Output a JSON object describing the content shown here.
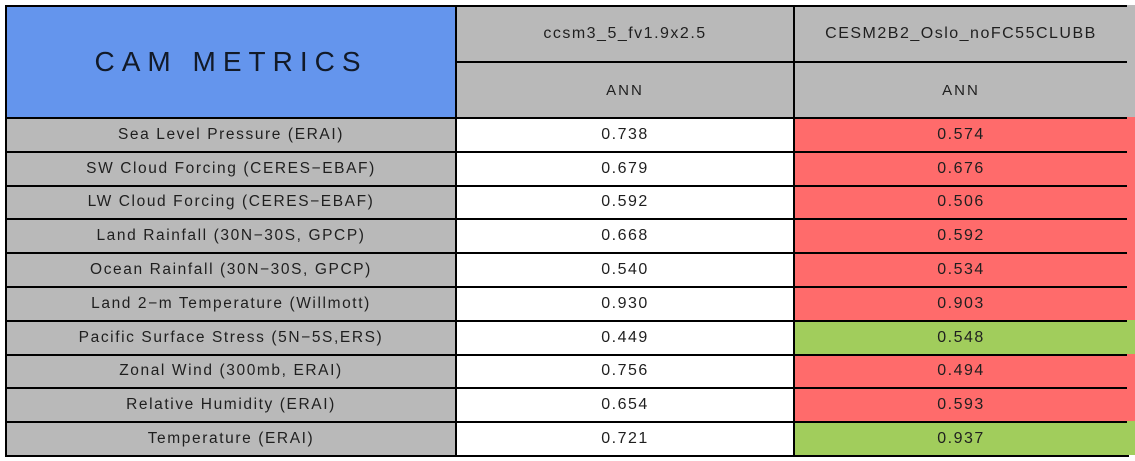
{
  "chart_data": {
    "type": "table",
    "title": "CAM METRICS",
    "column_groups": [
      {
        "model": "ccsm3_5_fv1.9x2.5",
        "season": "ANN"
      },
      {
        "model": "CESM2B2_Oslo_noFC55CLUBB",
        "season": "ANN"
      }
    ],
    "metrics": [
      "Sea Level Pressure (ERAI)",
      "SW Cloud Forcing (CERES−EBAF)",
      "LW Cloud Forcing (CERES−EBAF)",
      "Land Rainfall (30N−30S, GPCP)",
      "Ocean Rainfall (30N−30S, GPCP)",
      "Land 2−m Temperature (Willmott)",
      "Pacific Surface Stress (5N−5S,ERS)",
      "Zonal Wind (300mb, ERAI)",
      "Relative Humidity (ERAI)",
      "Temperature (ERAI)"
    ],
    "series": [
      {
        "name": "ccsm3_5_fv1.9x2.5 ANN",
        "values": [
          0.738,
          0.679,
          0.592,
          0.668,
          0.54,
          0.93,
          0.449,
          0.756,
          0.654,
          0.721
        ]
      },
      {
        "name": "CESM2B2_Oslo_noFC55CLUBB ANN",
        "values": [
          0.574,
          0.676,
          0.506,
          0.592,
          0.534,
          0.903,
          0.548,
          0.494,
          0.593,
          0.937
        ]
      }
    ],
    "cell_highlight_second_series": [
      "worse",
      "worse",
      "worse",
      "worse",
      "worse",
      "worse",
      "better",
      "worse",
      "worse",
      "better"
    ]
  },
  "table": {
    "title": "CAM METRICS",
    "col1": {
      "model": "ccsm3_5_fv1.9x2.5",
      "season": "ANN"
    },
    "col2": {
      "model": "CESM2B2_Oslo_noFC55CLUBB",
      "season": "ANN"
    },
    "rows": [
      {
        "metric": "Sea Level Pressure (ERAI)",
        "v1": "0.738",
        "v2": "0.574",
        "status": "worse"
      },
      {
        "metric": "SW Cloud Forcing (CERES−EBAF)",
        "v1": "0.679",
        "v2": "0.676",
        "status": "worse"
      },
      {
        "metric": "LW Cloud Forcing (CERES−EBAF)",
        "v1": "0.592",
        "v2": "0.506",
        "status": "worse"
      },
      {
        "metric": "Land Rainfall (30N−30S, GPCP)",
        "v1": "0.668",
        "v2": "0.592",
        "status": "worse"
      },
      {
        "metric": "Ocean Rainfall (30N−30S, GPCP)",
        "v1": "0.540",
        "v2": "0.534",
        "status": "worse"
      },
      {
        "metric": "Land 2−m Temperature (Willmott)",
        "v1": "0.930",
        "v2": "0.903",
        "status": "worse"
      },
      {
        "metric": "Pacific Surface Stress (5N−5S,ERS)",
        "v1": "0.449",
        "v2": "0.548",
        "status": "better"
      },
      {
        "metric": "Zonal Wind (300mb, ERAI)",
        "v1": "0.756",
        "v2": "0.494",
        "status": "worse"
      },
      {
        "metric": "Relative Humidity (ERAI)",
        "v1": "0.654",
        "v2": "0.593",
        "status": "worse"
      },
      {
        "metric": "Temperature (ERAI)",
        "v1": "0.721",
        "v2": "0.937",
        "status": "better"
      }
    ]
  },
  "colors": {
    "header_blue": "#6495ED",
    "cell_gray": "#B9B9B9",
    "worse_red": "#FF6B6B",
    "better_green": "#A1CD5C",
    "border_black": "#000000"
  }
}
